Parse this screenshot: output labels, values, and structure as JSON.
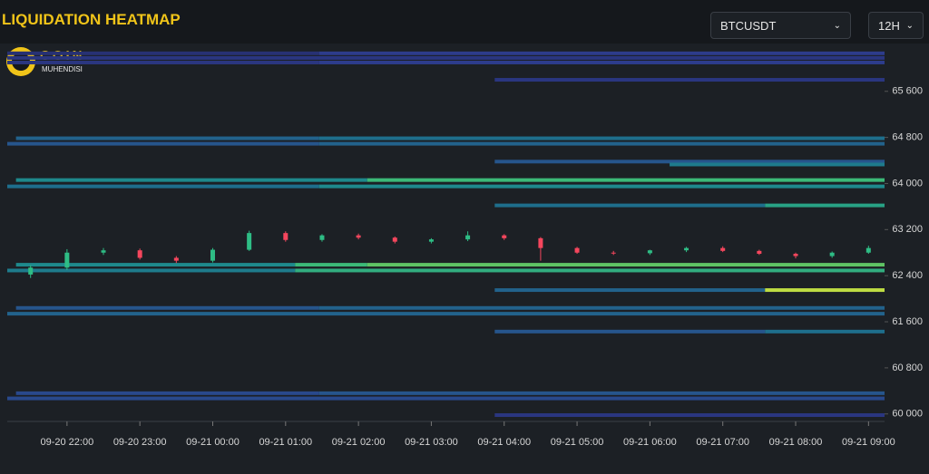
{
  "header": {
    "title": "LIQUIDATION HEATMAP",
    "symbol": "BTCUSDT",
    "range": "12H"
  },
  "logo": {
    "name": "COIN",
    "subtitle": "MUHENDISI"
  },
  "chart_data": {
    "type": "liquidation-heatmap",
    "xlim": [
      -0.82,
      11.22
    ],
    "xticks": [
      {
        "value": 0,
        "label": "09-20 22:00"
      },
      {
        "value": 1,
        "label": "09-20 23:00"
      },
      {
        "value": 2,
        "label": "09-21 00:00"
      },
      {
        "value": 3,
        "label": "09-21 01:00"
      },
      {
        "value": 4,
        "label": "09-21 02:00"
      },
      {
        "value": 5,
        "label": "09-21 03:00"
      },
      {
        "value": 6,
        "label": "09-21 04:00"
      },
      {
        "value": 7,
        "label": "09-21 05:00"
      },
      {
        "value": 8,
        "label": "09-21 06:00"
      },
      {
        "value": 9,
        "label": "09-21 07:00"
      },
      {
        "value": 10,
        "label": "09-21 08:00"
      },
      {
        "value": 11,
        "label": "09-21 09:00"
      }
    ],
    "ylim": [
      59870,
      66430
    ],
    "yticks": [
      {
        "value": 60000,
        "label": "60 000"
      },
      {
        "value": 60800,
        "label": "60 800"
      },
      {
        "value": 61600,
        "label": "61 600"
      },
      {
        "value": 62400,
        "label": "62 400"
      },
      {
        "value": 63200,
        "label": "63 200"
      },
      {
        "value": 64000,
        "label": "64 000"
      },
      {
        "value": 64800,
        "label": "64 800"
      },
      {
        "value": 65600,
        "label": "65 600"
      }
    ],
    "up_color": "#2ebd85",
    "down_color": "#f6465d",
    "x": [
      -0.5,
      0,
      0.5,
      1,
      1.5,
      2,
      2.5,
      3,
      3.5,
      4,
      4.5,
      5,
      5.5,
      6,
      6.5,
      7,
      7.5,
      8,
      8.5,
      9,
      9.5,
      10,
      10.5,
      11
    ],
    "open": [
      62420,
      62540,
      62800,
      62840,
      62710,
      62660,
      62850,
      63140,
      63020,
      63100,
      63060,
      62990,
      63030,
      63100,
      63050,
      62880,
      62800,
      62790,
      62840,
      62880,
      62830,
      62780,
      62740,
      62800
    ],
    "high": [
      62580,
      62860,
      62880,
      62870,
      62740,
      62880,
      63180,
      63170,
      63120,
      63130,
      63080,
      63050,
      63170,
      63120,
      63070,
      62900,
      62830,
      62850,
      62900,
      62910,
      62850,
      62800,
      62820,
      62920
    ],
    "low": [
      62360,
      62500,
      62760,
      62680,
      62620,
      62630,
      62830,
      62990,
      62990,
      63030,
      62960,
      62960,
      63000,
      63020,
      62660,
      62780,
      62760,
      62760,
      62810,
      62810,
      62760,
      62700,
      62710,
      62780
    ],
    "close": [
      62540,
      62800,
      62840,
      62710,
      62660,
      62850,
      63140,
      63020,
      63100,
      63060,
      62990,
      63030,
      63100,
      63050,
      62880,
      62800,
      62790,
      62840,
      62880,
      62830,
      62780,
      62740,
      62800,
      62880
    ],
    "bands": [
      {
        "price": 66260,
        "segments": [
          {
            "start": -0.82,
            "end": 3.46,
            "intensity": 0.15
          },
          {
            "start": 3.46,
            "end": 11.22,
            "intensity": 0.25
          }
        ]
      },
      {
        "price": 66180,
        "segments": [
          {
            "start": -0.82,
            "end": 11.22,
            "intensity": 0.2
          }
        ]
      },
      {
        "price": 66100,
        "segments": [
          {
            "start": -0.82,
            "end": 3.46,
            "intensity": 0.2
          },
          {
            "start": 3.46,
            "end": 11.22,
            "intensity": 0.25
          }
        ]
      },
      {
        "price": 65800,
        "segments": [
          {
            "start": 5.87,
            "end": 11.22,
            "intensity": 0.2
          }
        ]
      },
      {
        "price": 64785,
        "segments": [
          {
            "start": -0.7,
            "end": 3.46,
            "intensity": 0.4
          },
          {
            "start": 3.46,
            "end": 11.22,
            "intensity": 0.45
          }
        ]
      },
      {
        "price": 64690,
        "segments": [
          {
            "start": -0.82,
            "end": 3.46,
            "intensity": 0.35
          },
          {
            "start": 3.46,
            "end": 11.22,
            "intensity": 0.4
          }
        ]
      },
      {
        "price": 64380,
        "segments": [
          {
            "start": 5.87,
            "end": 11.22,
            "intensity": 0.35
          }
        ]
      },
      {
        "price": 64330,
        "segments": [
          {
            "start": 8.27,
            "end": 11.22,
            "intensity": 0.5
          }
        ]
      },
      {
        "price": 64060,
        "segments": [
          {
            "start": -0.7,
            "end": 4.12,
            "intensity": 0.55
          },
          {
            "start": 4.12,
            "end": 11.22,
            "intensity": 0.75
          }
        ]
      },
      {
        "price": 63950,
        "segments": [
          {
            "start": -0.82,
            "end": 3.46,
            "intensity": 0.45
          },
          {
            "start": 3.46,
            "end": 11.22,
            "intensity": 0.55
          }
        ]
      },
      {
        "price": 63620,
        "segments": [
          {
            "start": 5.87,
            "end": 9.58,
            "intensity": 0.45
          },
          {
            "start": 9.58,
            "end": 11.22,
            "intensity": 0.65
          }
        ]
      },
      {
        "price": 62590,
        "segments": [
          {
            "start": -0.7,
            "end": 3.13,
            "intensity": 0.55
          },
          {
            "start": 3.13,
            "end": 4.12,
            "intensity": 0.75
          },
          {
            "start": 4.12,
            "end": 11.22,
            "intensity": 0.8
          }
        ]
      },
      {
        "price": 62490,
        "segments": [
          {
            "start": -0.82,
            "end": 3.13,
            "intensity": 0.5
          },
          {
            "start": 3.13,
            "end": 11.22,
            "intensity": 0.7
          }
        ]
      },
      {
        "price": 62150,
        "segments": [
          {
            "start": 5.87,
            "end": 9.58,
            "intensity": 0.4
          },
          {
            "start": 9.58,
            "end": 11.22,
            "intensity": 0.95
          }
        ]
      },
      {
        "price": 61840,
        "segments": [
          {
            "start": -0.7,
            "end": 3.46,
            "intensity": 0.35
          },
          {
            "start": 3.46,
            "end": 11.22,
            "intensity": 0.4
          }
        ]
      },
      {
        "price": 61740,
        "segments": [
          {
            "start": -0.82,
            "end": 11.22,
            "intensity": 0.4
          }
        ]
      },
      {
        "price": 61430,
        "segments": [
          {
            "start": 5.87,
            "end": 9.58,
            "intensity": 0.35
          },
          {
            "start": 9.58,
            "end": 11.22,
            "intensity": 0.45
          }
        ]
      },
      {
        "price": 60360,
        "segments": [
          {
            "start": -0.7,
            "end": 3.46,
            "intensity": 0.3
          },
          {
            "start": 3.46,
            "end": 11.22,
            "intensity": 0.35
          }
        ]
      },
      {
        "price": 60270,
        "segments": [
          {
            "start": -0.82,
            "end": 11.22,
            "intensity": 0.3
          }
        ]
      },
      {
        "price": 59980,
        "segments": [
          {
            "start": 5.87,
            "end": 11.22,
            "intensity": 0.2
          }
        ]
      }
    ]
  }
}
